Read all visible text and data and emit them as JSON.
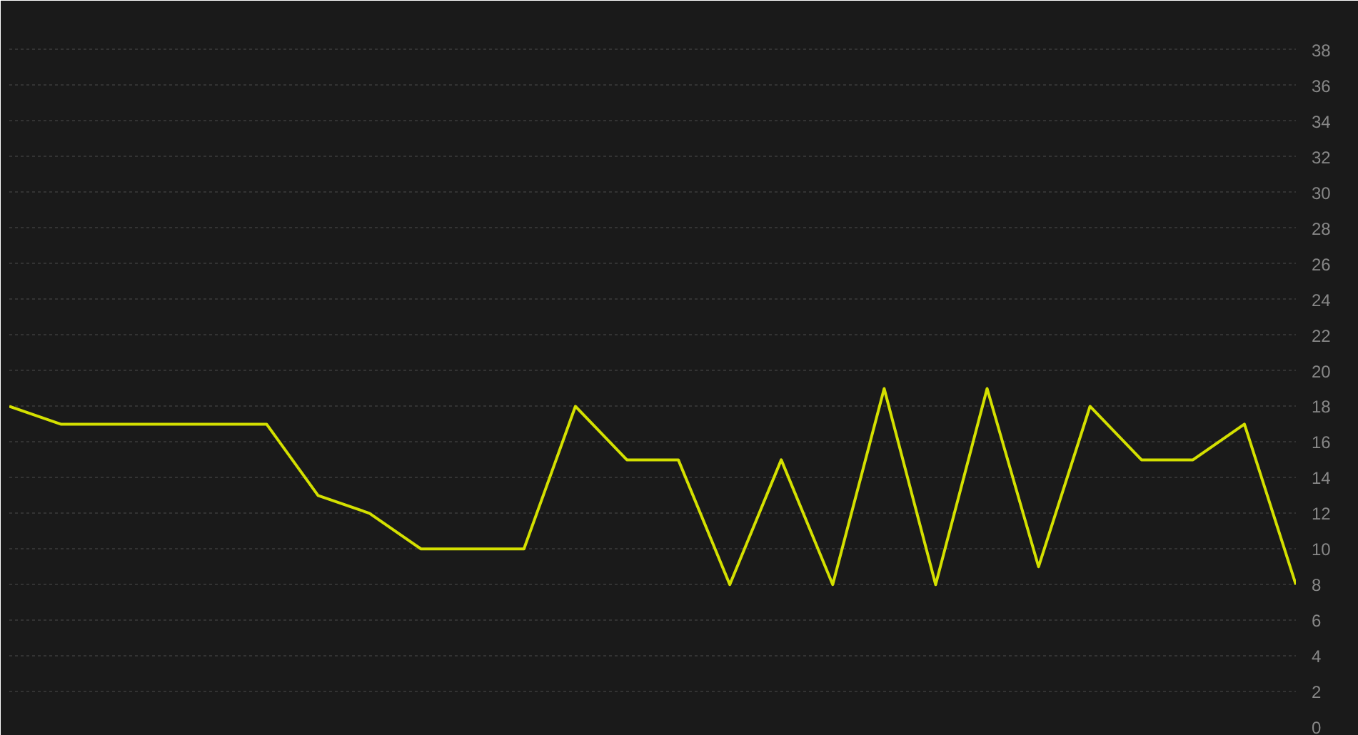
{
  "chart_data": {
    "type": "line",
    "categories": [
      null,
      null,
      null,
      null,
      null,
      null,
      null,
      null,
      null,
      null,
      null,
      null,
      null,
      null,
      null,
      null,
      null,
      null,
      null,
      null,
      null,
      null,
      null,
      null,
      null,
      null
    ],
    "series": [
      {
        "color": "#d4e000",
        "values": [
          18,
          17,
          17,
          17,
          17,
          17,
          13,
          12,
          10,
          10,
          10,
          18,
          15,
          15,
          8,
          15,
          8,
          19,
          8,
          19,
          9,
          18,
          15,
          15,
          17,
          8
        ]
      }
    ],
    "ylim": [
      0,
      39
    ],
    "yticks": [
      0,
      2,
      4,
      6,
      8,
      10,
      12,
      14,
      16,
      18,
      20,
      22,
      24,
      26,
      28,
      30,
      32,
      34,
      36,
      38
    ],
    "grid": "y",
    "marker": "none",
    "line_style": "solid",
    "tick_labels": "y"
  }
}
